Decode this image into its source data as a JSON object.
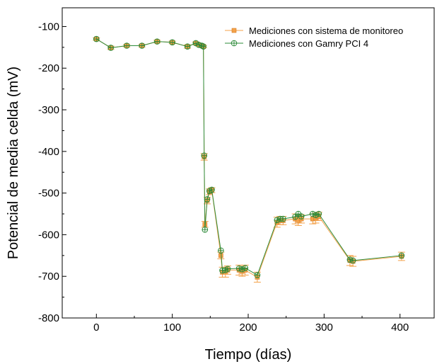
{
  "chart_data": {
    "type": "line",
    "xlabel": "Tiempo (días)",
    "ylabel": "Potencial de media celda (mV)",
    "xlim": [
      -45,
      445
    ],
    "ylim": [
      -800,
      -55
    ],
    "x_ticks": [
      0,
      100,
      200,
      300,
      400
    ],
    "y_ticks": [
      -100,
      -200,
      -300,
      -400,
      -500,
      -600,
      -700,
      -800
    ],
    "legend_position": "top-right",
    "grid": false,
    "series": [
      {
        "name": "Mediciones con sistema de monitoreo",
        "color": "#f4a24a",
        "marker": "square",
        "points": [
          {
            "x": 0,
            "y": -130,
            "err": 3
          },
          {
            "x": 19,
            "y": -151,
            "err": 4
          },
          {
            "x": 40,
            "y": -146,
            "err": 3
          },
          {
            "x": 60,
            "y": -146,
            "err": 3
          },
          {
            "x": 80,
            "y": -136,
            "err": 3
          },
          {
            "x": 100,
            "y": -138,
            "err": 3
          },
          {
            "x": 120,
            "y": -148,
            "err": 4
          },
          {
            "x": 131,
            "y": -140,
            "err": 3
          },
          {
            "x": 135,
            "y": -144,
            "err": 3
          },
          {
            "x": 139,
            "y": -146,
            "err": 3
          },
          {
            "x": 141,
            "y": -148,
            "err": 3
          },
          {
            "x": 142,
            "y": -413,
            "err": 8
          },
          {
            "x": 143,
            "y": -575,
            "err": 7
          },
          {
            "x": 146,
            "y": -518,
            "err": 8
          },
          {
            "x": 149,
            "y": -497,
            "err": 7
          },
          {
            "x": 152,
            "y": -493,
            "err": 6
          },
          {
            "x": 164,
            "y": -650,
            "err": 8
          },
          {
            "x": 166,
            "y": -690,
            "err": 12
          },
          {
            "x": 170,
            "y": -690,
            "err": 12
          },
          {
            "x": 173,
            "y": -685,
            "err": 10
          },
          {
            "x": 188,
            "y": -685,
            "err": 12
          },
          {
            "x": 192,
            "y": -688,
            "err": 12
          },
          {
            "x": 196,
            "y": -685,
            "err": 12
          },
          {
            "x": 212,
            "y": -702,
            "err": 12
          },
          {
            "x": 238,
            "y": -570,
            "err": 12
          },
          {
            "x": 242,
            "y": -566,
            "err": 10
          },
          {
            "x": 246,
            "y": -566,
            "err": 10
          },
          {
            "x": 262,
            "y": -562,
            "err": 12
          },
          {
            "x": 266,
            "y": -566,
            "err": 12
          },
          {
            "x": 270,
            "y": -562,
            "err": 10
          },
          {
            "x": 285,
            "y": -562,
            "err": 12
          },
          {
            "x": 289,
            "y": -560,
            "err": 12
          },
          {
            "x": 293,
            "y": -556,
            "err": 10
          },
          {
            "x": 334,
            "y": -662,
            "err": 12
          },
          {
            "x": 338,
            "y": -664,
            "err": 12
          },
          {
            "x": 402,
            "y": -652,
            "err": 10
          }
        ]
      },
      {
        "name": "Mediciones con Gamry PCI 4",
        "color": "#2e8b3a",
        "marker": "circle-cross",
        "points": [
          {
            "x": 0,
            "y": -130
          },
          {
            "x": 19,
            "y": -151
          },
          {
            "x": 40,
            "y": -146
          },
          {
            "x": 60,
            "y": -146
          },
          {
            "x": 80,
            "y": -136
          },
          {
            "x": 100,
            "y": -138
          },
          {
            "x": 120,
            "y": -148
          },
          {
            "x": 131,
            "y": -140
          },
          {
            "x": 135,
            "y": -144
          },
          {
            "x": 139,
            "y": -146
          },
          {
            "x": 141,
            "y": -148
          },
          {
            "x": 142,
            "y": -410
          },
          {
            "x": 143,
            "y": -588
          },
          {
            "x": 146,
            "y": -515
          },
          {
            "x": 149,
            "y": -495
          },
          {
            "x": 152,
            "y": -492
          },
          {
            "x": 164,
            "y": -638
          },
          {
            "x": 166,
            "y": -686
          },
          {
            "x": 170,
            "y": -685
          },
          {
            "x": 173,
            "y": -682
          },
          {
            "x": 188,
            "y": -681
          },
          {
            "x": 192,
            "y": -683
          },
          {
            "x": 196,
            "y": -680
          },
          {
            "x": 212,
            "y": -697
          },
          {
            "x": 238,
            "y": -565
          },
          {
            "x": 242,
            "y": -562
          },
          {
            "x": 246,
            "y": -562
          },
          {
            "x": 262,
            "y": -557
          },
          {
            "x": 266,
            "y": -550
          },
          {
            "x": 270,
            "y": -556
          },
          {
            "x": 285,
            "y": -550
          },
          {
            "x": 289,
            "y": -553
          },
          {
            "x": 293,
            "y": -550
          },
          {
            "x": 334,
            "y": -660
          },
          {
            "x": 338,
            "y": -662
          },
          {
            "x": 402,
            "y": -650
          }
        ]
      }
    ]
  }
}
